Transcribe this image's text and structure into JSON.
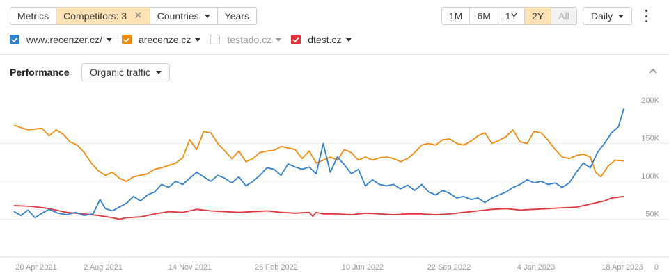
{
  "toolbar": {
    "metrics": "Metrics",
    "competitors": "Competitors: 3",
    "countries": "Countries",
    "years": "Years"
  },
  "range": {
    "options": [
      "1M",
      "6M",
      "1Y",
      "2Y",
      "All"
    ],
    "selected": "2Y",
    "granularity": "Daily"
  },
  "legend": [
    {
      "label": "www.recenzer.cz/",
      "color": "#2f80d0",
      "checked": true
    },
    {
      "label": "arecenze.cz",
      "color": "#f28b0c",
      "checked": true
    },
    {
      "label": "testado.cz",
      "color": "#c9c9c9",
      "checked": false
    },
    {
      "label": "dtest.cz",
      "color": "#e2343a",
      "checked": true
    }
  ],
  "panel": {
    "title": "Performance",
    "metric": "Organic traffic"
  },
  "chart_data": {
    "type": "line",
    "title": "",
    "xlabel": "",
    "ylabel": "",
    "ylim": [
      0,
      200000
    ],
    "y_ticks": [
      "200K",
      "150K",
      "100K",
      "50K",
      "0"
    ],
    "x_ticks": [
      "20 Apr 2021",
      "2 Aug 2021",
      "14 Nov 2021",
      "26 Feb 2022",
      "10 Jun 2022",
      "22 Sep 2022",
      "4 Jan 2023",
      "18 Apr 2023"
    ],
    "grid": true,
    "series": [
      {
        "name": "www.recenzer.cz/",
        "color": "#2f80d0",
        "points": [
          [
            0,
            60000
          ],
          [
            4,
            55000
          ],
          [
            8,
            62000
          ],
          [
            12,
            52000
          ],
          [
            16,
            58000
          ],
          [
            20,
            63000
          ],
          [
            25,
            58000
          ],
          [
            30,
            56000
          ],
          [
            35,
            59000
          ],
          [
            40,
            55000
          ],
          [
            45,
            57000
          ],
          [
            49,
            76000
          ],
          [
            52,
            64000
          ],
          [
            56,
            61000
          ],
          [
            60,
            66000
          ],
          [
            64,
            71000
          ],
          [
            68,
            80000
          ],
          [
            72,
            74000
          ],
          [
            76,
            82000
          ],
          [
            80,
            86000
          ],
          [
            84,
            96000
          ],
          [
            88,
            92000
          ],
          [
            92,
            100000
          ],
          [
            96,
            96000
          ],
          [
            100,
            104000
          ],
          [
            104,
            112000
          ],
          [
            108,
            106000
          ],
          [
            112,
            100000
          ],
          [
            116,
            108000
          ],
          [
            120,
            104000
          ],
          [
            124,
            98000
          ],
          [
            128,
            106000
          ],
          [
            132,
            94000
          ],
          [
            136,
            100000
          ],
          [
            140,
            108000
          ],
          [
            144,
            118000
          ],
          [
            148,
            116000
          ],
          [
            152,
            108000
          ],
          [
            156,
            123000
          ],
          [
            160,
            119000
          ],
          [
            164,
            116000
          ],
          [
            168,
            119000
          ],
          [
            172,
            110000
          ],
          [
            176,
            150000
          ],
          [
            180,
            112000
          ],
          [
            184,
            132000
          ],
          [
            188,
            122000
          ],
          [
            192,
            110000
          ],
          [
            196,
            116000
          ],
          [
            200,
            94000
          ],
          [
            204,
            102000
          ],
          [
            208,
            96000
          ],
          [
            212,
            94000
          ],
          [
            216,
            96000
          ],
          [
            220,
            90000
          ],
          [
            224,
            95000
          ],
          [
            228,
            88000
          ],
          [
            232,
            96000
          ],
          [
            236,
            86000
          ],
          [
            240,
            82000
          ],
          [
            244,
            88000
          ],
          [
            248,
            84000
          ],
          [
            252,
            78000
          ],
          [
            256,
            80000
          ],
          [
            260,
            76000
          ],
          [
            264,
            78000
          ],
          [
            268,
            72000
          ],
          [
            272,
            78000
          ],
          [
            276,
            82000
          ],
          [
            280,
            86000
          ],
          [
            284,
            92000
          ],
          [
            288,
            96000
          ],
          [
            292,
            102000
          ],
          [
            296,
            98000
          ],
          [
            300,
            100000
          ],
          [
            304,
            96000
          ],
          [
            308,
            98000
          ],
          [
            312,
            92000
          ],
          [
            316,
            98000
          ],
          [
            320,
            112000
          ],
          [
            324,
            124000
          ],
          [
            328,
            118000
          ],
          [
            332,
            138000
          ],
          [
            336,
            150000
          ],
          [
            340,
            164000
          ],
          [
            344,
            172000
          ],
          [
            347,
            196000
          ]
        ]
      },
      {
        "name": "arecenze.cz",
        "color": "#f28b0c",
        "points": [
          [
            0,
            174000
          ],
          [
            8,
            168000
          ],
          [
            16,
            170000
          ],
          [
            20,
            160000
          ],
          [
            24,
            168000
          ],
          [
            28,
            162000
          ],
          [
            32,
            152000
          ],
          [
            36,
            148000
          ],
          [
            40,
            138000
          ],
          [
            44,
            124000
          ],
          [
            48,
            114000
          ],
          [
            52,
            108000
          ],
          [
            56,
            112000
          ],
          [
            60,
            104000
          ],
          [
            64,
            100000
          ],
          [
            68,
            106000
          ],
          [
            72,
            108000
          ],
          [
            76,
            110000
          ],
          [
            80,
            116000
          ],
          [
            84,
            118000
          ],
          [
            88,
            121000
          ],
          [
            92,
            124000
          ],
          [
            96,
            131000
          ],
          [
            100,
            155000
          ],
          [
            104,
            142000
          ],
          [
            108,
            166000
          ],
          [
            112,
            164000
          ],
          [
            116,
            150000
          ],
          [
            120,
            140000
          ],
          [
            124,
            130000
          ],
          [
            128,
            140000
          ],
          [
            132,
            126000
          ],
          [
            136,
            130000
          ],
          [
            140,
            138000
          ],
          [
            144,
            140000
          ],
          [
            148,
            141000
          ],
          [
            152,
            146000
          ],
          [
            156,
            144000
          ],
          [
            160,
            142000
          ],
          [
            164,
            130000
          ],
          [
            168,
            140000
          ],
          [
            172,
            124000
          ],
          [
            176,
            128000
          ],
          [
            180,
            132000
          ],
          [
            184,
            128000
          ],
          [
            188,
            142000
          ],
          [
            192,
            138000
          ],
          [
            196,
            128000
          ],
          [
            200,
            132000
          ],
          [
            204,
            128000
          ],
          [
            208,
            131000
          ],
          [
            212,
            132000
          ],
          [
            216,
            130000
          ],
          [
            220,
            126000
          ],
          [
            224,
            130000
          ],
          [
            228,
            138000
          ],
          [
            232,
            148000
          ],
          [
            236,
            150000
          ],
          [
            240,
            148000
          ],
          [
            244,
            155000
          ],
          [
            248,
            156000
          ],
          [
            252,
            150000
          ],
          [
            256,
            148000
          ],
          [
            260,
            153000
          ],
          [
            264,
            160000
          ],
          [
            268,
            164000
          ],
          [
            272,
            150000
          ],
          [
            276,
            154000
          ],
          [
            280,
            159000
          ],
          [
            284,
            168000
          ],
          [
            288,
            152000
          ],
          [
            292,
            150000
          ],
          [
            296,
            166000
          ],
          [
            300,
            164000
          ],
          [
            304,
            154000
          ],
          [
            308,
            142000
          ],
          [
            312,
            132000
          ],
          [
            316,
            130000
          ],
          [
            320,
            134000
          ],
          [
            324,
            136000
          ],
          [
            328,
            132000
          ],
          [
            331,
            112000
          ],
          [
            334,
            106000
          ],
          [
            338,
            120000
          ],
          [
            342,
            128000
          ],
          [
            347,
            127000
          ]
        ]
      },
      {
        "name": "dtest.cz",
        "color": "#e2343a",
        "points": [
          [
            0,
            68000
          ],
          [
            10,
            67000
          ],
          [
            20,
            64000
          ],
          [
            30,
            59000
          ],
          [
            40,
            57000
          ],
          [
            48,
            55000
          ],
          [
            56,
            52000
          ],
          [
            60,
            50000
          ],
          [
            64,
            52000
          ],
          [
            72,
            53000
          ],
          [
            80,
            57000
          ],
          [
            88,
            60000
          ],
          [
            96,
            59000
          ],
          [
            104,
            63000
          ],
          [
            112,
            61000
          ],
          [
            120,
            60000
          ],
          [
            128,
            59000
          ],
          [
            136,
            60000
          ],
          [
            144,
            61000
          ],
          [
            152,
            59000
          ],
          [
            160,
            58000
          ],
          [
            168,
            59000
          ],
          [
            170,
            54000
          ],
          [
            172,
            59000
          ],
          [
            176,
            57000
          ],
          [
            184,
            57000
          ],
          [
            192,
            56000
          ],
          [
            200,
            58000
          ],
          [
            208,
            57000
          ],
          [
            216,
            56000
          ],
          [
            224,
            57000
          ],
          [
            232,
            57000
          ],
          [
            240,
            56000
          ],
          [
            248,
            57000
          ],
          [
            256,
            59000
          ],
          [
            264,
            61000
          ],
          [
            272,
            63000
          ],
          [
            280,
            64000
          ],
          [
            288,
            62000
          ],
          [
            296,
            63000
          ],
          [
            304,
            64000
          ],
          [
            312,
            65000
          ],
          [
            320,
            66000
          ],
          [
            328,
            70000
          ],
          [
            336,
            74000
          ],
          [
            340,
            78000
          ],
          [
            347,
            80000
          ]
        ]
      }
    ]
  }
}
